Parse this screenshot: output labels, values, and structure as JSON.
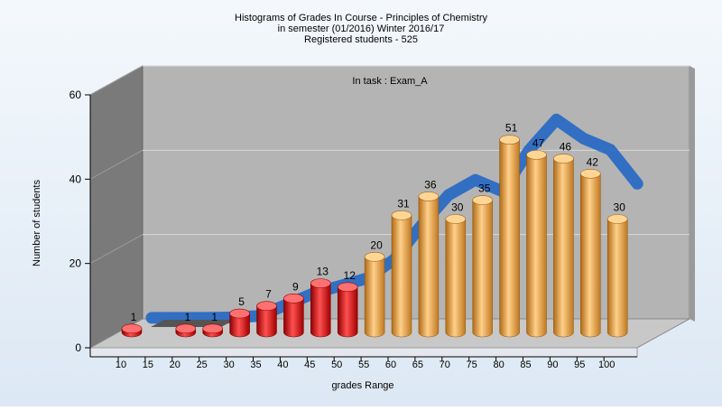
{
  "chart_data": {
    "type": "bar",
    "title_lines": [
      "Histograms of Grades  In Course - Principles of Chemistry",
      "in semester  (01/2016) Winter 2016/17",
      "Registered students - 525"
    ],
    "annotation": "In task : Exam_A",
    "xlabel": "grades Range",
    "ylabel": "Number of students",
    "ylim": [
      0,
      60
    ],
    "yticks": [
      "0",
      "20",
      "40",
      "60"
    ],
    "categories": [
      "10",
      "15",
      "20",
      "25",
      "30",
      "35",
      "40",
      "45",
      "50",
      "55",
      "60",
      "65",
      "70",
      "75",
      "80",
      "85",
      "90",
      "95",
      "100"
    ],
    "values": [
      1,
      0,
      1,
      1,
      5,
      7,
      9,
      13,
      12,
      20,
      31,
      36,
      30,
      35,
      51,
      47,
      46,
      42,
      30
    ],
    "value_labels": [
      "1",
      "",
      "1",
      "1",
      "5",
      "7",
      "9",
      "13",
      "12",
      "20",
      "31",
      "36",
      "30",
      "35",
      "51",
      "47",
      "46",
      "42",
      "30"
    ],
    "trend": [
      0.5,
      0.5,
      0.5,
      0.6,
      1,
      4,
      7,
      9,
      11,
      16,
      25,
      33,
      37,
      34,
      45,
      53,
      48,
      45,
      36
    ],
    "colors": {
      "low_bar": "#e02020",
      "high_bar": "#e8a040",
      "trend": "#2b6cc4",
      "wall": "#b4b4b4",
      "side_wall": "#7a7a7a"
    },
    "grid": true,
    "legend": "none"
  }
}
